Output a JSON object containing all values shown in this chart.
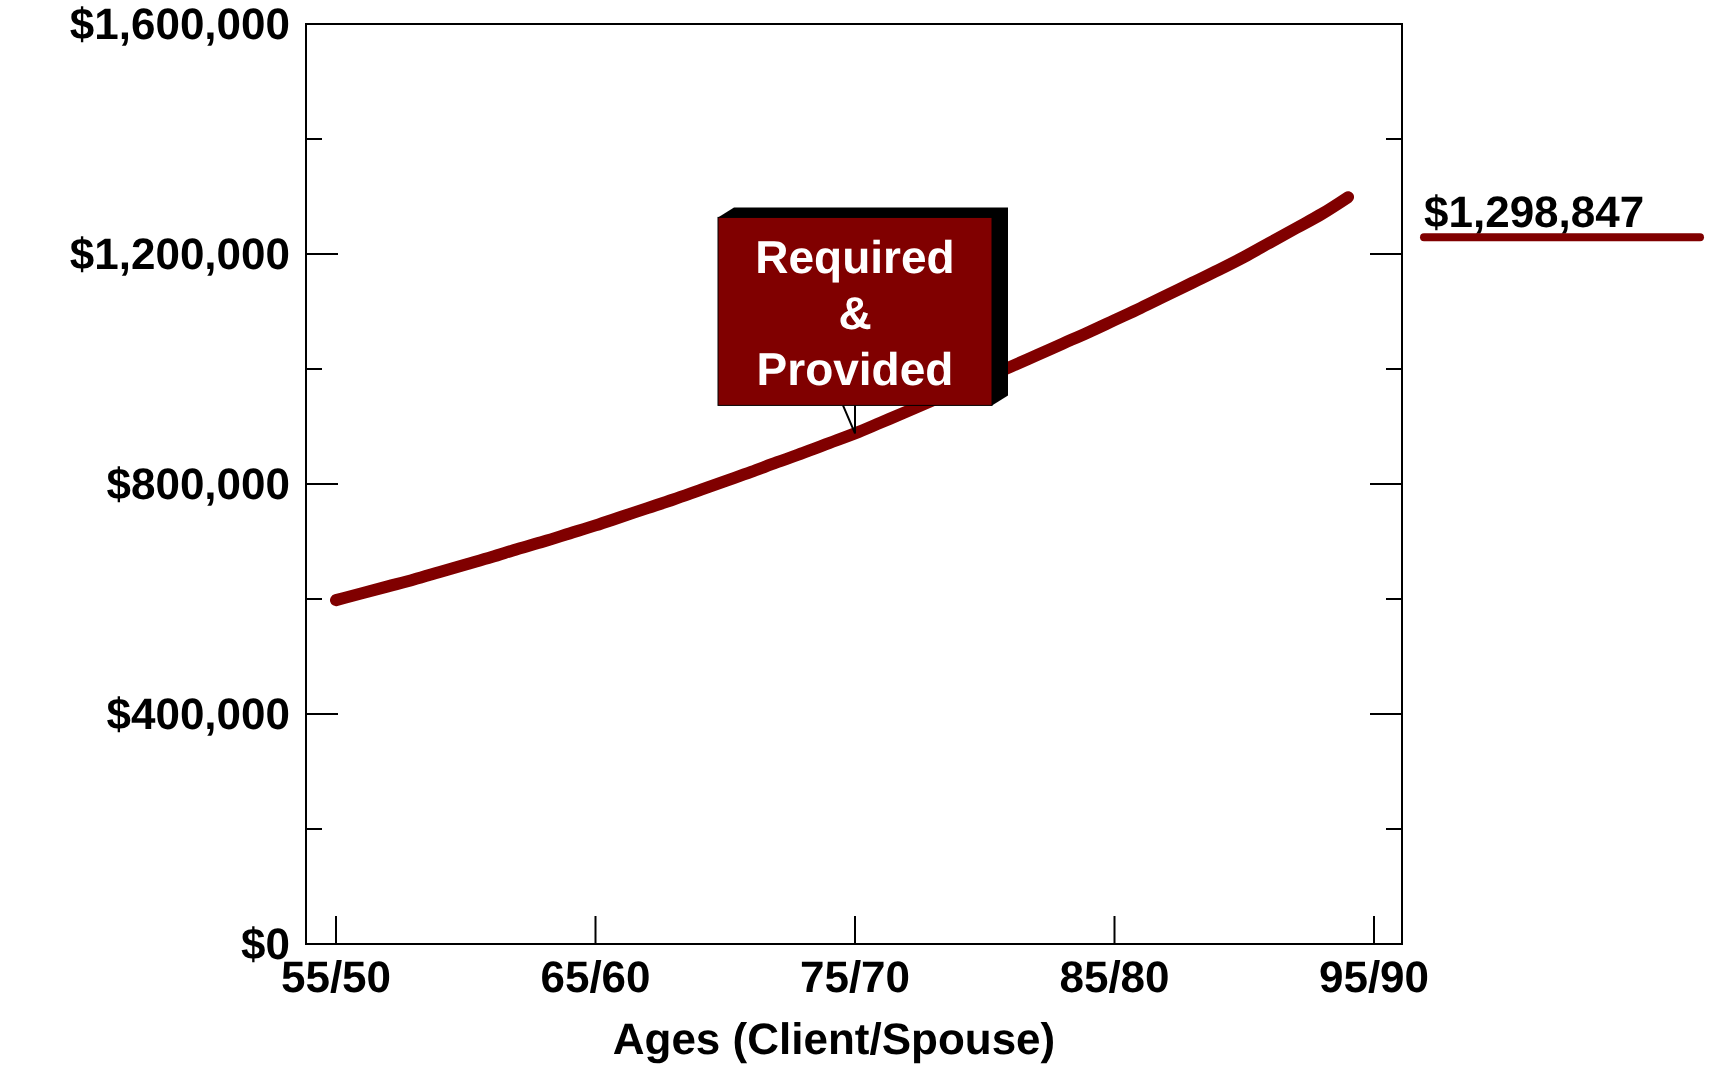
{
  "chart_data": {
    "type": "line",
    "xlabel": "Ages (Client/Spouse)",
    "categories": [
      "55/50",
      null,
      null,
      null,
      null,
      null,
      null,
      null,
      null,
      null,
      "65/60",
      null,
      null,
      null,
      null,
      null,
      null,
      null,
      null,
      null,
      "75/70",
      null,
      null,
      null,
      null,
      null,
      null,
      null,
      null,
      null,
      "85/80",
      null,
      null,
      null,
      null,
      null,
      null,
      null,
      null,
      null,
      "95/90"
    ],
    "series": [
      {
        "name": "Required & Provided",
        "color": "#800000",
        "values": [
          598000,
          610000,
          622000,
          634000,
          647000,
          660000,
          673000,
          687000,
          700000,
          714000,
          728000,
          743000,
          758000,
          773000,
          789000,
          805000,
          821000,
          838000,
          854000,
          871000,
          888000,
          907000,
          926000,
          null,
          null,
          null,
          1004000,
          1024000,
          1044000,
          1064000,
          1085000,
          1106000,
          1128000,
          1150000,
          1172000,
          1195000,
          1220000,
          1245000,
          1270000,
          1298847,
          null
        ],
        "value_labels": [
          null,
          null,
          null,
          null,
          null,
          null,
          null,
          null,
          null,
          null,
          null,
          null,
          null,
          null,
          null,
          null,
          null,
          null,
          null,
          null,
          null,
          null,
          null,
          null,
          null,
          null,
          null,
          null,
          null,
          null,
          null,
          null,
          null,
          null,
          null,
          null,
          null,
          null,
          null,
          "$1,298,847",
          null
        ]
      }
    ],
    "ylim": [
      0,
      1600000
    ],
    "yticks": [
      {
        "value": 0,
        "label": "$0"
      },
      {
        "value": 200000,
        "label": null
      },
      {
        "value": 400000,
        "label": "$400,000"
      },
      {
        "value": 600000,
        "label": null
      },
      {
        "value": 800000,
        "label": "$800,000"
      },
      {
        "value": 1000000,
        "label": null
      },
      {
        "value": 1200000,
        "label": "$1,200,000"
      },
      {
        "value": 1400000,
        "label": null
      },
      {
        "value": 1600000,
        "label": "$1,600,000"
      }
    ],
    "grid": false,
    "marker": "none",
    "line_style": "solid"
  }
}
